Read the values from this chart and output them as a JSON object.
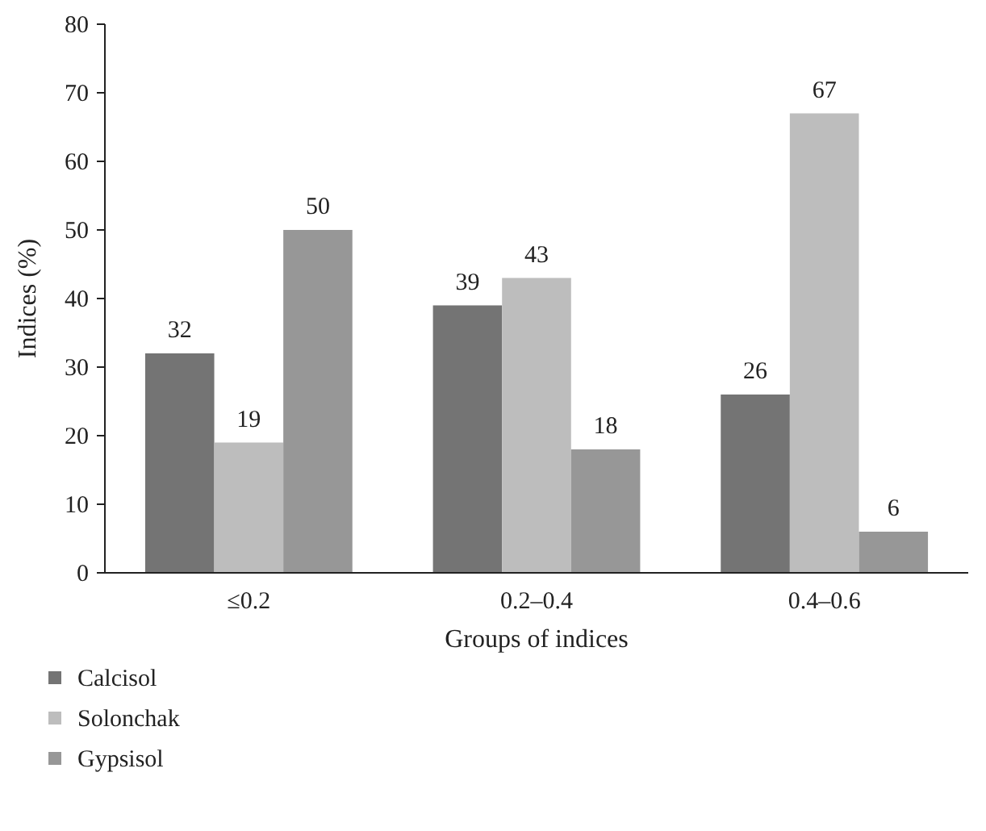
{
  "chart_data": {
    "type": "bar",
    "xlabel": "Groups of indices",
    "ylabel": "Indices (%)",
    "categories": [
      "≤0.2",
      "0.2–0.4",
      "0.4–0.6"
    ],
    "series": [
      {
        "name": "Calcisol",
        "color": "#747474",
        "values": [
          32,
          39,
          26
        ]
      },
      {
        "name": "Solonchak",
        "color": "#bdbdbd",
        "values": [
          19,
          43,
          67
        ]
      },
      {
        "name": "Gypsisol",
        "color": "#979797",
        "values": [
          50,
          18,
          6
        ]
      }
    ],
    "ylim": [
      0,
      80
    ],
    "yticks": [
      0,
      10,
      20,
      30,
      40,
      50,
      60,
      70,
      80
    ],
    "data_labels": true,
    "legend": "bottom",
    "grid": false
  }
}
